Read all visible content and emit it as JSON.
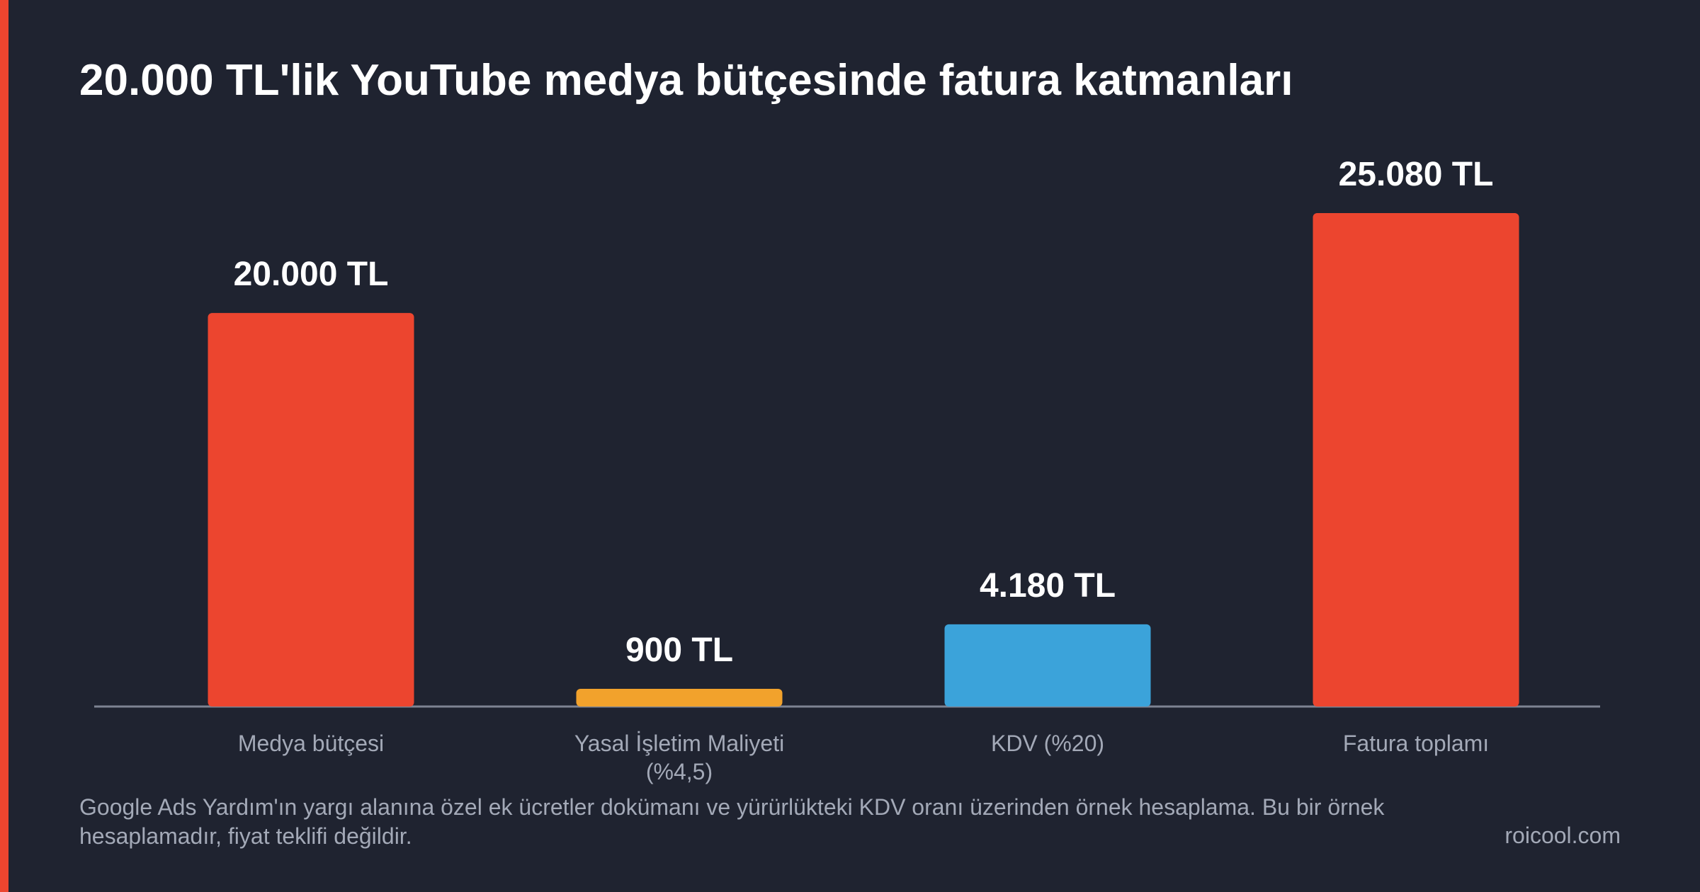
{
  "chart_data": {
    "type": "bar",
    "title": "20.000 TL'lik YouTube medya bütçesinde fatura katmanları",
    "categories": [
      "Medya bütçesi",
      "Yasal İşletim Maliyeti (%4,5)",
      "KDV (%20)",
      "Fatura toplamı"
    ],
    "values": [
      20000,
      900,
      4180,
      25080
    ],
    "value_labels": [
      "20.000 TL",
      "900 TL",
      "4.180 TL",
      "25.080 TL"
    ],
    "colors": [
      "#ec452f",
      "#f2a22c",
      "#3ba3da",
      "#ec452f"
    ],
    "note": "Google Ads Yardım'ın yargı alanına özel ek ücretler dokümanı ve yürürlükteki KDV oranı üzerinden örnek hesaplama. Bu bir örnek hesaplamadır, fiyat teklifi değildir.",
    "source": "roicool.com"
  }
}
